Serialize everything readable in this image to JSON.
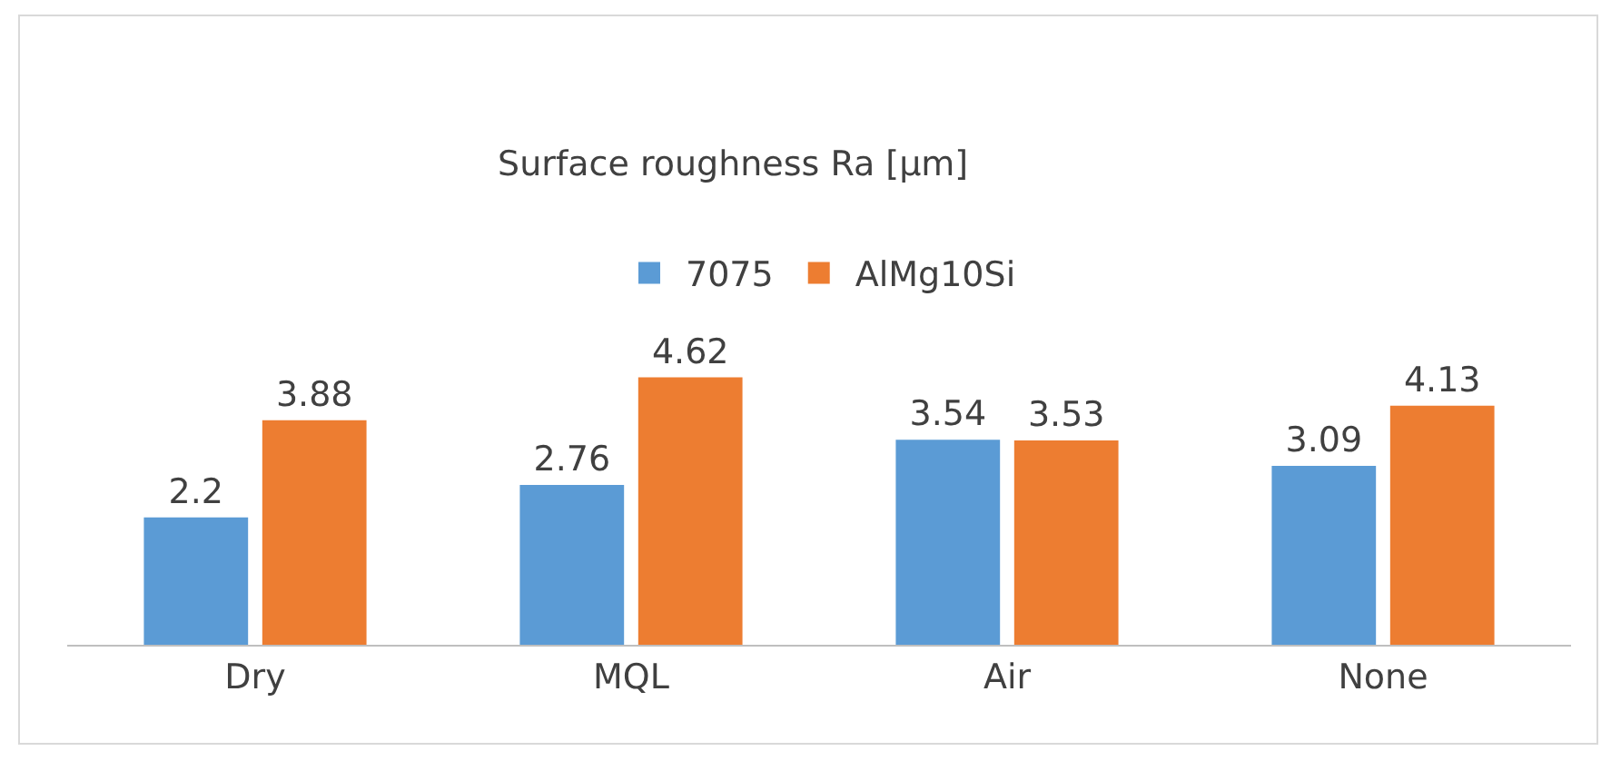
{
  "chart_data": {
    "type": "bar",
    "title": "Surface roughness Ra [µm]",
    "categories": [
      "Dry",
      "MQL",
      "Air",
      "None"
    ],
    "series": [
      {
        "name": "7075",
        "color": "#5b9bd5",
        "values": [
          2.2,
          2.76,
          3.54,
          3.09
        ]
      },
      {
        "name": "AlMg10Si",
        "color": "#ed7d31",
        "values": [
          3.88,
          4.62,
          3.53,
          4.13
        ]
      }
    ],
    "data_labels": true,
    "legend": "top",
    "grid": false,
    "tick_labels": "x"
  }
}
